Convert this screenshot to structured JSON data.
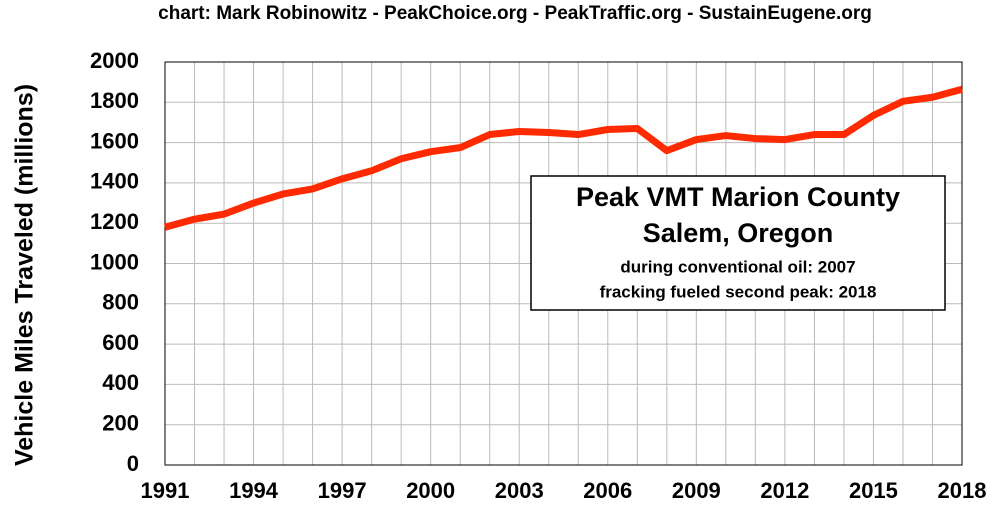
{
  "chart_data": {
    "type": "line",
    "subtitle": "chart: Mark Robinowitz - PeakChoice.org - PeakTraffic.org - SustainEugene.org",
    "y_label": "Vehicle Miles Traveled (millions)",
    "annotations": [
      "Peak VMT Marion County",
      "Salem, Oregon",
      "during conventional oil: 2007",
      "fracking fueled second peak: 2018"
    ],
    "x": [
      1991,
      1992,
      1993,
      1994,
      1995,
      1996,
      1997,
      1998,
      1999,
      2000,
      2001,
      2002,
      2003,
      2004,
      2005,
      2006,
      2007,
      2008,
      2009,
      2010,
      2011,
      2012,
      2013,
      2014,
      2015,
      2016,
      2017,
      2018
    ],
    "series": [
      {
        "name": "Vehicle Miles Traveled",
        "color": "#ff2a00",
        "values": [
          1180,
          1220,
          1245,
          1300,
          1345,
          1370,
          1420,
          1460,
          1520,
          1555,
          1575,
          1640,
          1655,
          1650,
          1640,
          1665,
          1670,
          1560,
          1615,
          1635,
          1620,
          1615,
          1640,
          1640,
          1735,
          1805,
          1825,
          1865
        ]
      }
    ],
    "xlim": [
      1991,
      2018
    ],
    "xticks": [
      1991,
      1994,
      1997,
      2000,
      2003,
      2006,
      2009,
      2012,
      2015,
      2018
    ],
    "ylim": [
      0,
      2000
    ],
    "yticks": [
      0,
      200,
      400,
      600,
      800,
      1000,
      1200,
      1400,
      1600,
      1800,
      2000
    ],
    "grid": true
  }
}
